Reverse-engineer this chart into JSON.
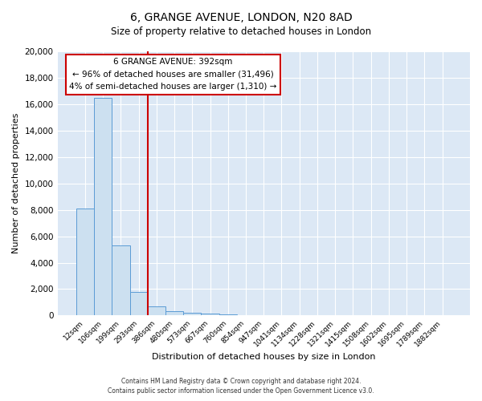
{
  "title": "6, GRANGE AVENUE, LONDON, N20 8AD",
  "subtitle": "Size of property relative to detached houses in London",
  "xlabel": "Distribution of detached houses by size in London",
  "ylabel": "Number of detached properties",
  "bar_labels": [
    "12sqm",
    "106sqm",
    "199sqm",
    "293sqm",
    "386sqm",
    "480sqm",
    "573sqm",
    "667sqm",
    "760sqm",
    "854sqm",
    "947sqm",
    "1041sqm",
    "1134sqm",
    "1228sqm",
    "1321sqm",
    "1415sqm",
    "1508sqm",
    "1602sqm",
    "1695sqm",
    "1789sqm",
    "1882sqm"
  ],
  "bar_values": [
    8100,
    16500,
    5300,
    1800,
    700,
    350,
    200,
    150,
    100,
    0,
    0,
    0,
    0,
    0,
    0,
    0,
    0,
    0,
    0,
    0,
    0
  ],
  "bar_color": "#cce0f0",
  "bar_edge_color": "#5b9bd5",
  "background_color": "#dce8f5",
  "ylim": [
    0,
    20000
  ],
  "yticks": [
    0,
    2000,
    4000,
    6000,
    8000,
    10000,
    12000,
    14000,
    16000,
    18000,
    20000
  ],
  "red_line_index": 3.5,
  "annotation_title": "6 GRANGE AVENUE: 392sqm",
  "annotation_line2": "← 96% of detached houses are smaller (31,496)",
  "annotation_line3": "4% of semi-detached houses are larger (1,310) →",
  "footer_line1": "Contains HM Land Registry data © Crown copyright and database right 2024.",
  "footer_line2": "Contains public sector information licensed under the Open Government Licence v3.0."
}
